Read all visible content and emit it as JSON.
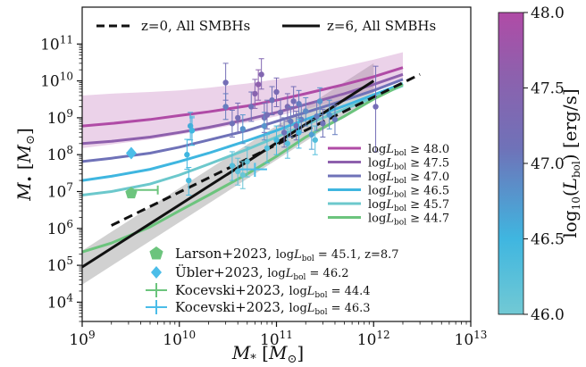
{
  "chart_data": {
    "type": "line",
    "xlabel": "M_* [M_⊙]",
    "ylabel": "M_• [M_⊙]",
    "xscale": "log",
    "yscale": "log",
    "xlim": [
      1000000000.0,
      10000000000000.0
    ],
    "ylim": [
      3000,
      1000000000000.0
    ],
    "x_tick_labels": [
      "10^9",
      "10^10",
      "10^11",
      "10^12",
      "10^13"
    ],
    "y_tick_labels": [
      "10^4",
      "10^5",
      "10^6",
      "10^7",
      "10^8",
      "10^9",
      "10^10",
      "10^11"
    ],
    "grid": false,
    "top_legend": [
      {
        "label": "z=0, All SMBHs",
        "style": "dashed",
        "color": "#111111"
      },
      {
        "label": "z=6, All SMBHs",
        "style": "solid",
        "color": "#111111"
      }
    ],
    "reference_lines": [
      {
        "name": "z=0, All SMBHs",
        "style": "dashed",
        "x": [
          2000000000.0,
          3000000000000.0
        ],
        "y": [
          1200000.0,
          15000000000.0
        ]
      },
      {
        "name": "z=6, All SMBHs",
        "style": "solid",
        "x": [
          1000000000.0,
          1000000000000.0
        ],
        "y": [
          90000.0,
          10000000000.0
        ],
        "band_lower": [
          30000.0,
          3500000000.0
        ],
        "band_upper": [
          250000.0,
          30000000000.0
        ]
      }
    ],
    "luminosity_tracks": [
      {
        "name": "log L_bol ≥ 48.0",
        "color": "#b04ba6",
        "x": [
          1000000000.0,
          2000000000.0,
          5000000000.0,
          10000000000.0,
          20000000000.0,
          50000000000.0,
          100000000000.0,
          200000000000.0,
          500000000000.0,
          1000000000000.0,
          2000000000000.0
        ],
        "y": [
          600000000.0,
          700000000.0,
          900000000.0,
          1150000000.0,
          1450000000.0,
          2100000000.0,
          3000000000.0,
          4500000000.0,
          8000000000.0,
          13000000000.0,
          23000000000.0
        ],
        "band_lower": [
          150000000.0,
          190000000.0,
          260000000.0,
          350000000.0,
          480000000.0,
          750000000.0,
          1100000000.0,
          1700000000.0,
          3200000000.0,
          5500000000.0,
          10000000000.0
        ],
        "band_upper": [
          4000000000.0,
          4500000000.0,
          5000000000.0,
          5500000000.0,
          6500000000.0,
          8500000000.0,
          11000000000.0,
          15000000000.0,
          25000000000.0,
          38000000000.0,
          60000000000.0
        ]
      },
      {
        "name": "log L_bol ≥ 47.5",
        "color": "#8e60ad",
        "x": [
          1000000000.0,
          2000000000.0,
          5000000000.0,
          10000000000.0,
          20000000000.0,
          50000000000.0,
          100000000000.0,
          200000000000.0,
          500000000000.0,
          1000000000000.0,
          2000000000000.0
        ],
        "y": [
          200000000.0,
          230000000.0,
          300000000.0,
          400000000.0,
          550000000.0,
          900000000.0,
          1400000000.0,
          2300000000.0,
          4500000000.0,
          8000000000.0,
          15000000000.0
        ]
      },
      {
        "name": "log L_bol ≥ 47.0",
        "color": "#6f72b8",
        "x": [
          1000000000.0,
          2000000000.0,
          5000000000.0,
          10000000000.0,
          20000000000.0,
          50000000000.0,
          100000000000.0,
          200000000000.0,
          500000000000.0,
          1000000000000.0,
          2000000000000.0
        ],
        "y": [
          65000000.0,
          80000000.0,
          110000000.0,
          160000000.0,
          250000000.0,
          450000000.0,
          800000000.0,
          1400000000.0,
          3000000000.0,
          5500000000.0,
          11000000000.0
        ]
      },
      {
        "name": "log L_bol ≥ 46.5",
        "color": "#3fb6e0",
        "x": [
          1000000000.0,
          2000000000.0,
          5000000000.0,
          10000000000.0,
          20000000000.0,
          50000000000.0,
          100000000000.0,
          200000000000.0,
          500000000000.0,
          1000000000000.0,
          2000000000000.0
        ],
        "y": [
          20000000.0,
          26000000.0,
          40000000.0,
          65000000.0,
          110000000.0,
          240000000.0,
          450000000.0,
          900000000.0,
          2100000000.0,
          4200000000.0,
          8500000000.0
        ]
      },
      {
        "name": "log L_bol ≥ 45.7",
        "color": "#6cc8cc",
        "x": [
          1000000000.0,
          2000000000.0,
          5000000000.0,
          10000000000.0,
          20000000000.0,
          50000000000.0,
          100000000000.0,
          200000000000.0,
          500000000000.0,
          1000000000000.0,
          2000000000000.0
        ],
        "y": [
          8000000.0,
          10000000.0,
          16000000.0,
          28000000.0,
          55000000.0,
          140000000.0,
          300000000.0,
          650000000.0,
          1700000000.0,
          3600000000.0,
          7500000000.0
        ]
      },
      {
        "name": "log L_bol ≥ 44.7",
        "color": "#6cc47d",
        "x": [
          1000000000.0,
          2000000000.0,
          5000000000.0,
          10000000000.0,
          20000000000.0,
          50000000000.0,
          100000000000.0,
          200000000000.0,
          500000000000.0,
          1000000000000.0,
          2000000000000.0
        ],
        "y": [
          230000.0,
          400000.0,
          1100000.0,
          3000000.0,
          8000000.0,
          30000000.0,
          90000000.0,
          300000000.0,
          1100000000.0,
          3200000000.0,
          8000000000.0
        ]
      }
    ],
    "observations": [
      {
        "label": "Larson+2023, log L_bol = 45.1, z=8.7",
        "marker": "pentagon",
        "color": "#6cc47d",
        "x": 3200000000.0,
        "y": 9000000.0
      },
      {
        "label": "Übler+2023, log L_bol = 46.2",
        "marker": "diamond",
        "color": "#4bbde8",
        "x": 3200000000.0,
        "y": 110000000.0
      },
      {
        "label": "Kocevski+2023, log L_bol = 44.4",
        "marker": "cross",
        "color": "#6cc47d",
        "x": 3200000000.0,
        "y": 11000000.0,
        "x_err_high": 6000000000.0
      },
      {
        "label": "Kocevski+2023, log L_bol = 46.3",
        "marker": "cross",
        "color": "#4bbde8",
        "x": 60000000000.0,
        "y": 40000000.0,
        "x_err_low": 40000000000.0,
        "x_err_high": 80000000000.0,
        "y_err_low": 25000000.0,
        "y_err_high": 60000000.0
      }
    ],
    "quasar_points": [
      {
        "x": 13000000000.0,
        "y": 600000000.0,
        "lo": 250000000.0,
        "hi": 1400000000.0,
        "L": 46.6
      },
      {
        "x": 13500000000.0,
        "y": 450000000.0,
        "lo": 180000000.0,
        "hi": 1100000000.0,
        "L": 46.3
      },
      {
        "x": 12000000000.0,
        "y": 100000000.0,
        "lo": 40000000.0,
        "hi": 260000000.0,
        "L": 46.5
      },
      {
        "x": 12500000000.0,
        "y": 20000000.0,
        "lo": 8000000.0,
        "hi": 45000000.0,
        "L": 46.4
      },
      {
        "x": 13500000000.0,
        "y": 450000000.0,
        "lo": 180000000.0,
        "hi": 1000000000.0,
        "L": 46.5
      },
      {
        "x": 30000000000.0,
        "y": 9000000000.0,
        "lo": 3000000000.0,
        "hi": 30000000000.0,
        "L": 47.2
      },
      {
        "x": 30000000000.0,
        "y": 2000000000.0,
        "lo": 900000000.0,
        "hi": 4500000000.0,
        "L": 47.0
      },
      {
        "x": 35000000000.0,
        "y": 700000000.0,
        "lo": 300000000.0,
        "hi": 1600000000.0,
        "L": 47.1
      },
      {
        "x": 40000000000.0,
        "y": 1000000000.0,
        "lo": 400000000.0,
        "hi": 2500000000.0,
        "L": 47.2
      },
      {
        "x": 45000000000.0,
        "y": 500000000.0,
        "lo": 200000000.0,
        "hi": 1200000000.0,
        "L": 46.8
      },
      {
        "x": 55000000000.0,
        "y": 2000000000.0,
        "lo": 800000000.0,
        "hi": 5000000000.0,
        "L": 47.1
      },
      {
        "x": 60000000000.0,
        "y": 4500000000.0,
        "lo": 1800000000.0,
        "hi": 11000000000.0,
        "L": 47.5
      },
      {
        "x": 65000000000.0,
        "y": 8000000000.0,
        "lo": 3000000000.0,
        "hi": 20000000000.0,
        "L": 47.6
      },
      {
        "x": 70000000000.0,
        "y": 15000000000.0,
        "lo": 6000000000.0,
        "hi": 40000000000.0,
        "L": 47.4
      },
      {
        "x": 75000000000.0,
        "y": 1000000000.0,
        "lo": 400000000.0,
        "hi": 2500000000.0,
        "L": 47.3
      },
      {
        "x": 75000000000.0,
        "y": 600000000.0,
        "lo": 250000000.0,
        "hi": 1400000000.0,
        "L": 46.8
      },
      {
        "x": 80000000000.0,
        "y": 1200000000.0,
        "lo": 500000000.0,
        "hi": 3000000000.0,
        "L": 47.2
      },
      {
        "x": 90000000000.0,
        "y": 3000000000.0,
        "lo": 1200000000.0,
        "hi": 7000000000.0,
        "L": 47.1
      },
      {
        "x": 100000000000.0,
        "y": 5000000000.0,
        "lo": 2000000000.0,
        "hi": 12000000000.0,
        "L": 47.3
      },
      {
        "x": 110000000000.0,
        "y": 1400000000.0,
        "lo": 600000000.0,
        "hi": 3200000000.0,
        "L": 47.2
      },
      {
        "x": 120000000000.0,
        "y": 400000000.0,
        "lo": 160000000.0,
        "hi": 1000000000.0,
        "L": 47.1
      },
      {
        "x": 130000000000.0,
        "y": 2000000000.0,
        "lo": 800000000.0,
        "hi": 4500000000.0,
        "L": 47.3
      },
      {
        "x": 140000000000.0,
        "y": 800000000.0,
        "lo": 300000000.0,
        "hi": 2000000000.0,
        "L": 47.0
      },
      {
        "x": 150000000000.0,
        "y": 2800000000.0,
        "lo": 1100000000.0,
        "hi": 7000000000.0,
        "L": 47.2
      },
      {
        "x": 160000000000.0,
        "y": 600000000.0,
        "lo": 250000000.0,
        "hi": 1500000000.0,
        "L": 47.2
      },
      {
        "x": 180000000000.0,
        "y": 900000000.0,
        "lo": 400000000.0,
        "hi": 2200000000.0,
        "L": 47.0
      },
      {
        "x": 200000000000.0,
        "y": 1500000000.0,
        "lo": 600000000.0,
        "hi": 3500000000.0,
        "L": 46.9
      },
      {
        "x": 230000000000.0,
        "y": 350000000.0,
        "lo": 140000000.0,
        "hi": 900000000.0,
        "L": 46.7
      },
      {
        "x": 260000000000.0,
        "y": 1100000000.0,
        "lo": 450000000.0,
        "hi": 2700000000.0,
        "L": 47.0
      },
      {
        "x": 300000000000.0,
        "y": 700000000.0,
        "lo": 300000000.0,
        "hi": 1700000000.0,
        "L": 47.1
      },
      {
        "x": 350000000000.0,
        "y": 1200000000.0,
        "lo": 500000000.0,
        "hi": 3000000000.0,
        "L": 46.8
      },
      {
        "x": 400000000000.0,
        "y": 900000000.0,
        "lo": 350000000.0,
        "hi": 2200000000.0,
        "L": 47.0
      },
      {
        "x": 1050000000000.0,
        "y": 2000000000.0,
        "lo": 120000000.0,
        "hi": 25000000000.0,
        "L": 47.2
      },
      {
        "x": 170000000000.0,
        "y": 2400000000.0,
        "lo": 1000000000.0,
        "hi": 5500000000.0,
        "L": 47.0
      },
      {
        "x": 280000000000.0,
        "y": 2800000000.0,
        "lo": 1200000000.0,
        "hi": 6500000000.0,
        "L": 46.8
      },
      {
        "x": 35000000000.0,
        "y": 50000000.0,
        "lo": 20000000.0,
        "hi": 120000000.0,
        "L": 46.3
      },
      {
        "x": 40000000000.0,
        "y": 35000000.0,
        "lo": 15000000.0,
        "hi": 80000000.0,
        "L": 46.2
      },
      {
        "x": 45000000000.0,
        "y": 28000000.0,
        "lo": 12000000.0,
        "hi": 65000000.0,
        "L": 46.1
      },
      {
        "x": 50000000000.0,
        "y": 65000000.0,
        "lo": 25000000.0,
        "hi": 160000000.0,
        "L": 46.2
      },
      {
        "x": 80000000000.0,
        "y": 150000000.0,
        "lo": 60000000.0,
        "hi": 350000000.0,
        "L": 46.3
      },
      {
        "x": 100000000000.0,
        "y": 250000000.0,
        "lo": 100000000.0,
        "hi": 600000000.0,
        "L": 46.4
      },
      {
        "x": 130000000000.0,
        "y": 200000000.0,
        "lo": 80000000.0,
        "hi": 500000000.0,
        "L": 46.3
      },
      {
        "x": 170000000000.0,
        "y": 400000000.0,
        "lo": 150000000.0,
        "hi": 900000000.0,
        "L": 46.5
      },
      {
        "x": 250000000000.0,
        "y": 250000000.0,
        "lo": 100000000.0,
        "hi": 600000000.0,
        "L": 46.3
      }
    ],
    "legend_lower": [
      {
        "label": "Larson+2023,",
        "detail": "log L_bol = 45.1, z=8.7"
      },
      {
        "label": "Übler+2023,",
        "detail": "log L_bol = 46.2"
      },
      {
        "label": "Kocevski+2023,",
        "detail": "log L_bol = 44.4"
      },
      {
        "label": "Kocevski+2023,",
        "detail": "log L_bol = 46.3"
      }
    ],
    "colorbar": {
      "label": "log10(L_bol) [erg/s]",
      "min": 46.0,
      "max": 48.0,
      "ticks": [
        "46.0",
        "46.5",
        "47.0",
        "47.5",
        "48.0"
      ],
      "color_low": "#72c9d4",
      "color_mid": "#3fb6e0",
      "color_high": "#b04ba6"
    }
  }
}
